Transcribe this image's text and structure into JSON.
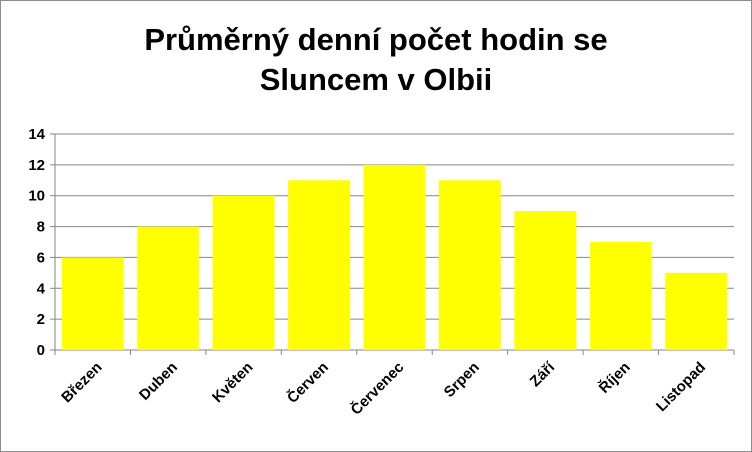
{
  "chart_data": {
    "type": "bar",
    "title_lines": [
      "Průměrný denní počet hodin se",
      "Sluncem v Olbii"
    ],
    "categories": [
      "Březen",
      "Duben",
      "Květen",
      "Červen",
      "Červenec",
      "Srpen",
      "Září",
      "Říjen",
      "Listopad"
    ],
    "values": [
      6,
      8,
      10,
      11,
      12,
      11,
      9,
      7,
      5
    ],
    "ylim": [
      0,
      14
    ],
    "yticks": [
      0,
      2,
      4,
      6,
      8,
      10,
      12,
      14
    ],
    "grid": true,
    "legend": "none",
    "bar_color": "#FFFF00",
    "grid_color": "#868686"
  }
}
